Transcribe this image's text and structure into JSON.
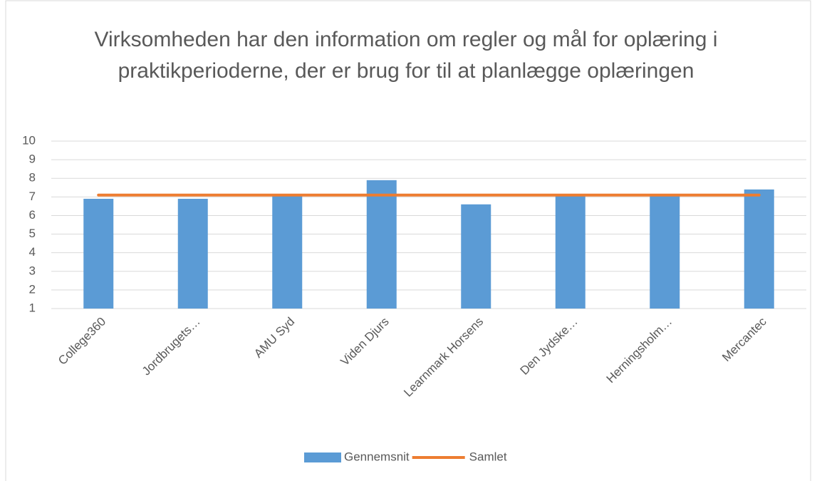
{
  "chart_data": {
    "type": "bar",
    "title": "Virksomheden har den information om regler og mål for oplæring i praktikperioderne, der er brug for til at planlægge oplæringen",
    "categories": [
      "College360",
      "Jordbrugets…",
      "AMU Syd",
      "Viden Djurs",
      "Learnmark Horsens",
      "Den Jydske…",
      "Herningsholm…",
      "Mercantec"
    ],
    "series": [
      {
        "name": "Gennemsnit",
        "type": "bar",
        "color": "#5b9bd5",
        "values": [
          6.9,
          6.9,
          7.1,
          7.9,
          6.6,
          7.1,
          7.1,
          7.4
        ]
      },
      {
        "name": "Samlet",
        "type": "line",
        "color": "#ed7d31",
        "values": [
          7.1,
          7.1,
          7.1,
          7.1,
          7.1,
          7.1,
          7.1,
          7.1
        ]
      }
    ],
    "ylim": [
      1,
      10
    ],
    "yticks": [
      1,
      2,
      3,
      4,
      5,
      6,
      7,
      8,
      9,
      10
    ],
    "grid": true,
    "legend": "bottom"
  }
}
